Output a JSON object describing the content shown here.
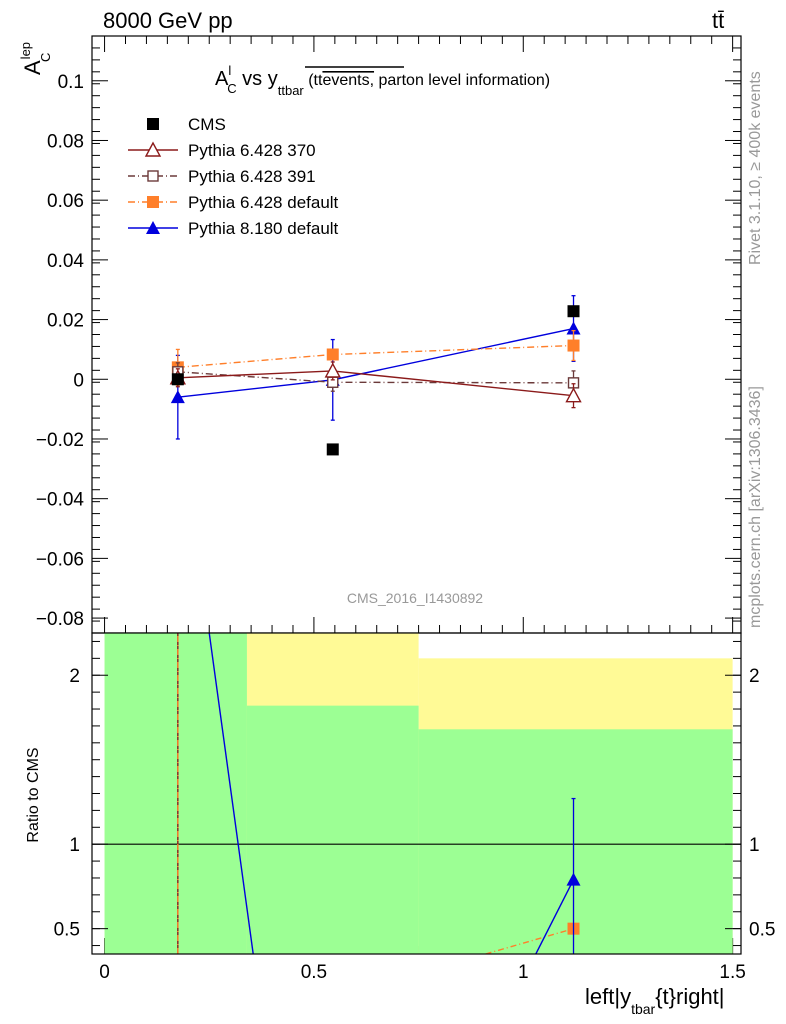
{
  "header": {
    "left_title": "8000 GeV pp",
    "right_title": "tt̄"
  },
  "side_labels": {
    "rivet": "Rivet 3.1.10, ≥ 400k events",
    "mcplots": "mcplots.cern.ch [arXiv:1306.3436]"
  },
  "chart_data": [
    {
      "type": "scatter",
      "panel": "main",
      "title_parts": {
        "A": "A",
        "A_sup": "l",
        "A_sub": "C",
        "vs": " vs y",
        "y_sub": "ttbar",
        "paren_open": " (tt",
        "overline": "events,",
        "paren_close": " parton level information)"
      },
      "ylabel": {
        "base": "A",
        "sup": "lep",
        "sub": "C"
      },
      "watermark": "CMS_2016_I1430892",
      "xlim": [
        -0.03,
        1.52
      ],
      "ylim": [
        -0.085,
        0.115
      ],
      "yticks": [
        -0.08,
        -0.06,
        -0.04,
        -0.02,
        0,
        0.02,
        0.04,
        0.06,
        0.08,
        0.1
      ],
      "ytick_labels": [
        "−0.08",
        "−0.06",
        "−0.04",
        "−0.02",
        "0",
        "0.02",
        "0.04",
        "0.06",
        "0.08",
        "0.1"
      ],
      "series": [
        {
          "name": "CMS",
          "color": "#000000",
          "marker": "square-filled",
          "line": "none",
          "points": [
            {
              "x": 0.175,
              "y": 0.0,
              "err": 0.0
            },
            {
              "x": 0.545,
              "y": -0.0235,
              "err": 0.0
            },
            {
              "x": 1.12,
              "y": 0.0228,
              "err": 0.0
            }
          ]
        },
        {
          "name": "Pythia 6.428 370",
          "color": "#8b1a1a",
          "marker": "triangle-open",
          "line": "solid",
          "points": [
            {
              "x": 0.175,
              "y": 0.0005,
              "err": 0.003
            },
            {
              "x": 0.545,
              "y": 0.0028,
              "err": 0.003
            },
            {
              "x": 1.12,
              "y": -0.0055,
              "err": 0.004
            }
          ]
        },
        {
          "name": "Pythia 6.428 391",
          "color": "#6b3a3a",
          "marker": "square-open",
          "line": "dashdot",
          "points": [
            {
              "x": 0.175,
              "y": 0.0025,
              "err": 0.003
            },
            {
              "x": 0.545,
              "y": -0.001,
              "err": 0.003
            },
            {
              "x": 1.12,
              "y": -0.0012,
              "err": 0.004
            }
          ]
        },
        {
          "name": "Pythia 6.428 default",
          "color": "#ff7f2a",
          "marker": "square-filled",
          "line": "dashdot",
          "points": [
            {
              "x": 0.175,
              "y": 0.004,
              "err": 0.006
            },
            {
              "x": 0.545,
              "y": 0.0083,
              "err": 0.0
            },
            {
              "x": 1.12,
              "y": 0.0113,
              "err": 0.005
            }
          ]
        },
        {
          "name": "Pythia 8.180 default",
          "color": "#0000dd",
          "marker": "triangle-filled",
          "line": "solid",
          "points": [
            {
              "x": 0.175,
              "y": -0.006,
              "err": 0.014
            },
            {
              "x": 0.545,
              "y": -0.0002,
              "err": 0.0135
            },
            {
              "x": 1.12,
              "y": 0.017,
              "err": 0.011
            }
          ]
        }
      ]
    },
    {
      "type": "line",
      "panel": "ratio",
      "ylabel": "Ratio to CMS",
      "xlabel": "left|y",
      "xlabel_sub": "tbar",
      "xlabel_tail": "{t}right|",
      "xlim": [
        -0.03,
        1.52
      ],
      "ylim": [
        0.35,
        2.25
      ],
      "yticks": [
        0.5,
        1,
        2
      ],
      "ytick_labels": [
        "0.5",
        "1",
        "2"
      ],
      "xticks": [
        0,
        0.5,
        1,
        1.5
      ],
      "xtick_labels": [
        "0",
        "0.5",
        "1",
        "1.5"
      ],
      "bands": [
        {
          "color": "#fffa96",
          "bins": [
            [
              0.0,
              0.34,
              0.0,
              3.2
            ],
            [
              0.34,
              0.75,
              0.0,
              2.25
            ],
            [
              0.75,
              1.5,
              0.0,
              2.1
            ]
          ]
        },
        {
          "color": "#9cff94",
          "bins": [
            [
              0.0,
              0.34,
              0.0,
              3.2
            ],
            [
              0.34,
              0.75,
              0.0,
              1.82
            ],
            [
              0.75,
              1.5,
              0.0,
              1.68
            ]
          ]
        }
      ],
      "series": [
        {
          "name": "Pythia 6.428 370",
          "color": "#8b1a1a",
          "dash": "",
          "points": [
            [
              0.175,
              0.35
            ],
            [
              0.175,
              3.0
            ]
          ]
        },
        {
          "name": "Pythia 6.428 default",
          "color": "#ff7f2a",
          "dash": "6,3,1,3",
          "points": [
            [
              0.175,
              0.35
            ],
            [
              0.175,
              3.0
            ]
          ],
          "extra": [
            [
              0.91,
              0.35
            ],
            [
              1.12,
              0.5
            ]
          ],
          "marker": {
            "x": 1.12,
            "y": 0.5
          }
        },
        {
          "name": "Pythia 8.180 default",
          "color": "#0000dd",
          "dash": "",
          "points": [
            [
              0.25,
              2.25
            ],
            [
              0.355,
              0.35
            ]
          ],
          "extra": [
            [
              1.03,
              0.35
            ],
            [
              1.12,
              0.79
            ]
          ],
          "marker": {
            "x": 1.12,
            "y": 0.79,
            "err": 0.48
          }
        }
      ]
    }
  ]
}
